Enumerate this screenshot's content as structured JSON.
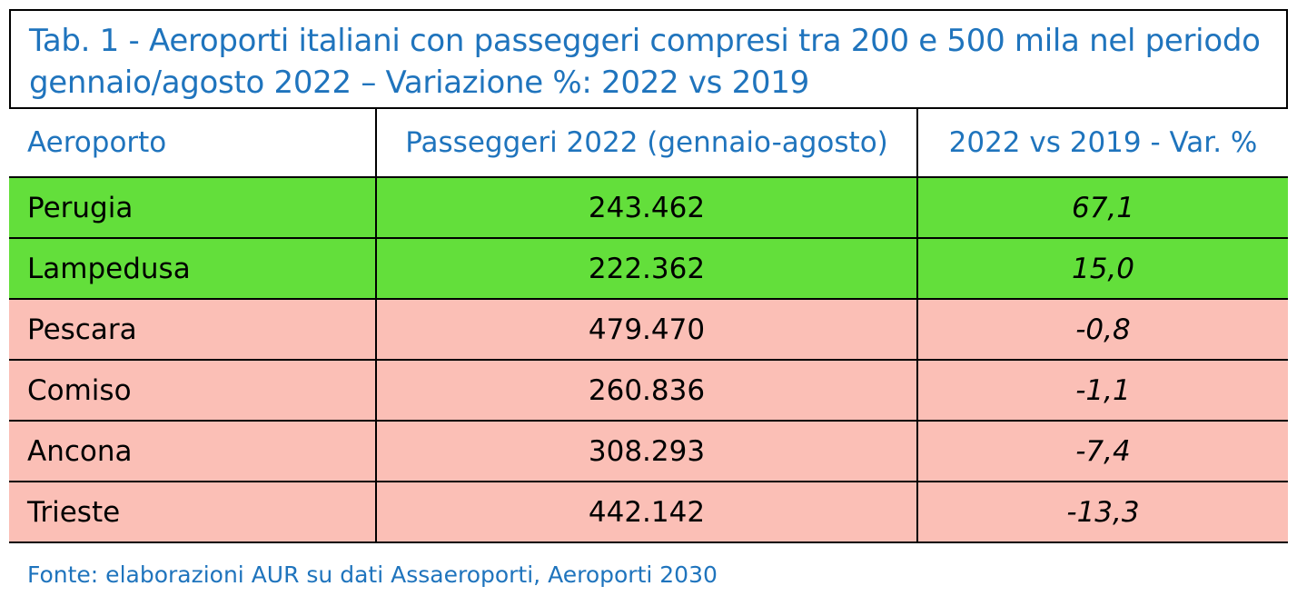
{
  "table": {
    "title": "Tab. 1 - Aeroporti italiani con passeggeri compresi tra 200 e 500 mila nel periodo gennaio/agosto 2022 – Variazione %: 2022 vs 2019",
    "headers": [
      "Aeroporto",
      "Passeggeri 2022 (gennaio-agosto)",
      "2022 vs 2019 - Var. %"
    ],
    "rows": [
      {
        "airport": "Perugia",
        "passengers": "243.462",
        "variation": "67,1"
      },
      {
        "airport": "Lampedusa",
        "passengers": "222.362",
        "variation": "15,0"
      },
      {
        "airport": "Pescara",
        "passengers": "479.470",
        "variation": "-0,8"
      },
      {
        "airport": "Comiso",
        "passengers": "260.836",
        "variation": "-1,1"
      },
      {
        "airport": "Ancona",
        "passengers": "308.293",
        "variation": "-7,4"
      },
      {
        "airport": "Trieste",
        "passengers": "442.142",
        "variation": "-13,3"
      }
    ],
    "source": "Fonte: elaborazioni AUR su dati Assaeroporti, Aeroporti 2030"
  },
  "colors": {
    "title_text": "#1f74bd",
    "positive_row": "#63df3b",
    "negative_row": "#fbbfb6",
    "border": "#000000"
  }
}
